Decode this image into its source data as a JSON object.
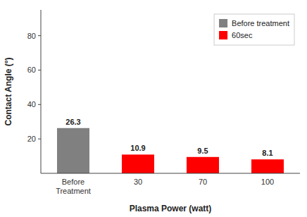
{
  "chart_data": {
    "type": "bar",
    "categories": [
      "Before\nTreatment",
      "30",
      "70",
      "100"
    ],
    "series": [
      {
        "name": "Before treatment",
        "color": "#808080",
        "values": [
          26.3,
          null,
          null,
          null
        ]
      },
      {
        "name": "60sec",
        "color": "#ff0000",
        "values": [
          null,
          10.9,
          9.5,
          8.1
        ]
      }
    ],
    "xlabel": "Plasma Power  (watt)",
    "ylabel": "Contact Angle (°)",
    "ylim": [
      0,
      95
    ],
    "yticks": [
      20,
      40,
      60,
      80
    ],
    "data_labels": true,
    "legend": "upper right",
    "grid": false
  }
}
